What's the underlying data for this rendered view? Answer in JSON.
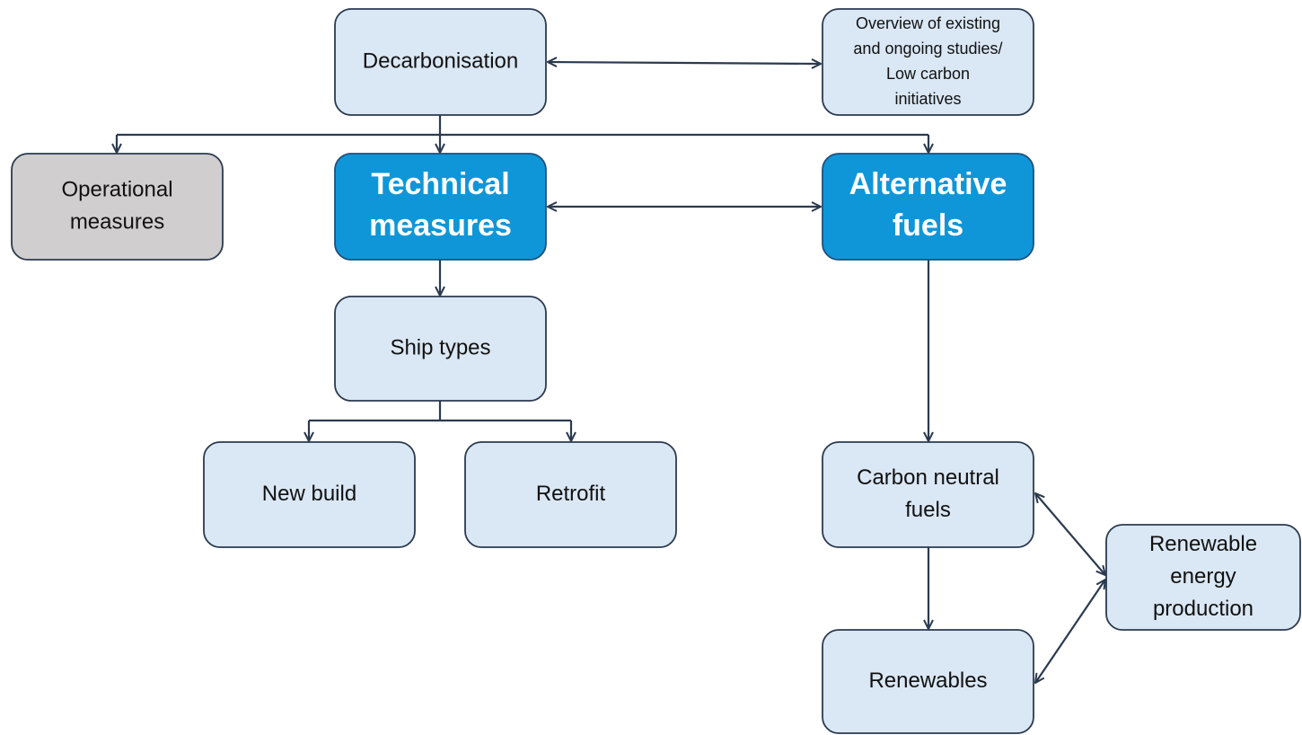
{
  "nodes": [
    {
      "label": [
        "Decarbonisation"
      ]
    },
    {
      "label": [
        "Overview of existing",
        "and ongoing studies/",
        "Low carbon",
        "initiatives"
      ]
    },
    {
      "label": [
        "Operational",
        "measures"
      ]
    },
    {
      "label": [
        "Technical",
        "measures"
      ]
    },
    {
      "label": [
        "Alternative",
        "fuels"
      ]
    },
    {
      "label": [
        "Ship types"
      ]
    },
    {
      "label": [
        "New build"
      ]
    },
    {
      "label": [
        "Retrofit"
      ]
    },
    {
      "label": [
        "Carbon neutral",
        "fuels"
      ]
    },
    {
      "label": [
        "Renewables"
      ]
    },
    {
      "label": [
        "Renewable",
        "energy",
        "production"
      ]
    }
  ]
}
